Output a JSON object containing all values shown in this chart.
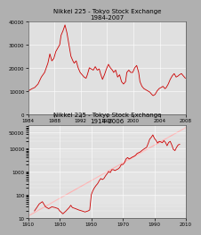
{
  "chart1": {
    "title": "Nikkei 225 - Tokyo Stock Exchange",
    "subtitle": "1984-2007",
    "xlim": [
      1984,
      2008
    ],
    "ylim": [
      0,
      40000
    ],
    "yticks": [
      0,
      10000,
      20000,
      30000,
      40000
    ],
    "xticks": [
      1984,
      1988,
      1992,
      1996,
      2000,
      2004,
      2008
    ],
    "line_color": "#cc0000",
    "bg_color": "#e0e0e0",
    "data_x": [
      1984.0,
      1984.3,
      1984.6,
      1985.0,
      1985.5,
      1986.0,
      1986.5,
      1987.0,
      1987.3,
      1987.6,
      1987.9,
      1988.2,
      1988.5,
      1988.8,
      1989.0,
      1989.3,
      1989.6,
      1989.9,
      1990.2,
      1990.5,
      1990.8,
      1991.0,
      1991.3,
      1991.6,
      1991.9,
      1992.2,
      1992.5,
      1992.8,
      1993.0,
      1993.3,
      1993.6,
      1993.9,
      1994.2,
      1994.5,
      1994.8,
      1995.0,
      1995.3,
      1995.6,
      1995.9,
      1996.2,
      1996.5,
      1996.8,
      1997.0,
      1997.3,
      1997.6,
      1997.9,
      1998.2,
      1998.5,
      1998.8,
      1999.0,
      1999.3,
      1999.6,
      1999.9,
      2000.2,
      2000.5,
      2000.8,
      2001.0,
      2001.3,
      2001.6,
      2001.9,
      2002.2,
      2002.5,
      2002.8,
      2003.0,
      2003.3,
      2003.6,
      2003.9,
      2004.2,
      2004.5,
      2004.8,
      2005.0,
      2005.3,
      2005.6,
      2005.9,
      2006.2,
      2006.5,
      2006.8,
      2007.0,
      2007.3,
      2007.6,
      2007.9
    ],
    "data_y": [
      10000,
      10500,
      11000,
      11500,
      13000,
      16000,
      18000,
      22000,
      26000,
      23000,
      24000,
      27000,
      28500,
      30000,
      34000,
      36000,
      38500,
      35000,
      30000,
      25000,
      23000,
      22000,
      23000,
      20000,
      18000,
      17000,
      16000,
      15500,
      17000,
      20000,
      19500,
      19000,
      20500,
      19000,
      19500,
      17500,
      15000,
      17000,
      19500,
      21500,
      20000,
      19000,
      18000,
      19000,
      16000,
      17000,
      14000,
      13000,
      14000,
      18000,
      19000,
      18000,
      18000,
      20000,
      21000,
      18000,
      14000,
      12000,
      11000,
      10500,
      10000,
      9500,
      8500,
      8000,
      8500,
      10000,
      11000,
      11500,
      12000,
      11000,
      11500,
      13000,
      15000,
      16500,
      17500,
      16000,
      16500,
      17000,
      17500,
      16500,
      15500
    ]
  },
  "chart2": {
    "title": "Nikkei 225 - Tokyo Stock Exchange",
    "subtitle": "1914-2006",
    "xlim": [
      1910,
      2010
    ],
    "ylim_log": [
      10,
      100000
    ],
    "yticks_log": [
      10,
      100,
      1000,
      10000,
      50000
    ],
    "ytick_labels": [
      "10",
      "100",
      "1000",
      "10000",
      "50000"
    ],
    "xticks": [
      1910,
      1930,
      1950,
      1970,
      1990,
      2010
    ],
    "line_color": "#cc0000",
    "trend_color": "#ffb0b0",
    "bg_color": "#e0e0e0",
    "trend_x": [
      1910,
      2010
    ],
    "trend_y": [
      12,
      80000
    ],
    "data_x": [
      1914,
      1915,
      1917,
      1919,
      1921,
      1923,
      1925,
      1927,
      1929,
      1930,
      1932,
      1934,
      1936,
      1937,
      1938,
      1940,
      1942,
      1944,
      1946,
      1948,
      1949,
      1950,
      1951,
      1952,
      1953,
      1954,
      1955,
      1956,
      1957,
      1958,
      1959,
      1960,
      1961,
      1962,
      1963,
      1964,
      1965,
      1966,
      1967,
      1968,
      1969,
      1970,
      1971,
      1972,
      1973,
      1974,
      1975,
      1976,
      1977,
      1978,
      1979,
      1980,
      1981,
      1982,
      1983,
      1984,
      1985,
      1986,
      1987,
      1988,
      1989,
      1990,
      1991,
      1992,
      1993,
      1994,
      1995,
      1996,
      1997,
      1998,
      1999,
      2000,
      2001,
      2002,
      2003,
      2004,
      2005,
      2006
    ],
    "data_y": [
      20,
      25,
      40,
      50,
      30,
      25,
      30,
      28,
      25,
      20,
      15,
      20,
      28,
      35,
      28,
      25,
      22,
      20,
      18,
      20,
      22,
      100,
      150,
      200,
      250,
      300,
      400,
      500,
      450,
      500,
      650,
      800,
      1000,
      900,
      1200,
      1200,
      1100,
      1200,
      1300,
      1500,
      2000,
      2000,
      2400,
      3500,
      4000,
      3500,
      3800,
      4200,
      4500,
      5000,
      6000,
      6500,
      7000,
      8000,
      9000,
      10000,
      11000,
      16000,
      25000,
      30000,
      38000,
      27000,
      22000,
      17000,
      20000,
      19000,
      17500,
      21500,
      18000,
      13000,
      18000,
      20000,
      14000,
      9000,
      8000,
      11000,
      14000,
      15000
    ]
  },
  "fig_bg": "#b0b0b0",
  "frame_color": "#888888",
  "title_fontsize": 5,
  "tick_fontsize": 4
}
